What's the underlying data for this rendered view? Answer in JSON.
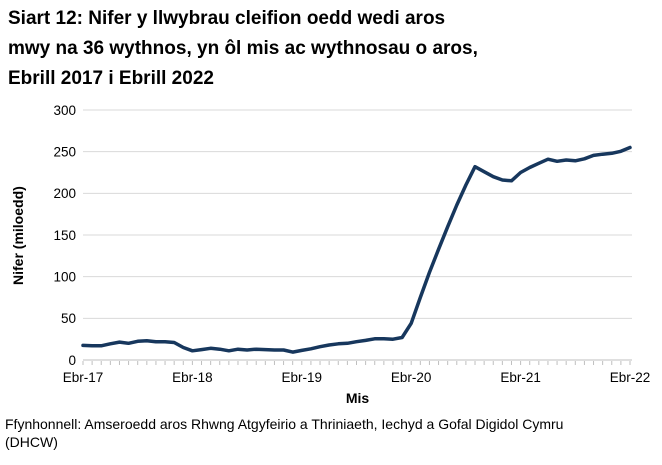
{
  "header": {
    "title": "Siart 12: Nifer y llwybrau cleifion oedd wedi aros mwy na 36 wythnos, yn ôl mis ac wythnosau o aros, Ebrill 2017 i Ebrill 2022",
    "title_lines": [
      "Siart 12: Nifer y llwybrau cleifion oedd wedi aros",
      "mwy na 36 wythnos, yn ôl mis ac wythnosau o aros,",
      "Ebrill 2017 i Ebrill 2022"
    ]
  },
  "footer": {
    "source": "Ffynhonnell: Amseroedd aros Rhwng Atgyfeirio a Thriniaeth, Iechyd a Gofal Digidol Cymru (DHCW)",
    "source_lines": [
      "Ffynhonnell: Amseroedd aros Rhwng Atgyfeirio a Thriniaeth, Iechyd a Gofal Digidol Cymru",
      "(DHCW)"
    ]
  },
  "chart_data": {
    "type": "line",
    "title": "Siart 12: Nifer y llwybrau cleifion oedd wedi aros mwy na 36 wythnos, yn ôl mis ac wythnosau o aros, Ebrill 2017 i Ebrill 2022",
    "xlabel": "Mis",
    "ylabel": "Nifer (miloedd)",
    "ylim": [
      0,
      300
    ],
    "y_ticks": [
      0,
      50,
      100,
      150,
      200,
      250,
      300
    ],
    "x_tick_labels": [
      "Ebr-17",
      "Ebr-18",
      "Ebr-19",
      "Ebr-20",
      "Ebr-21",
      "Ebr-22"
    ],
    "x_tick_month_index": [
      0,
      12,
      24,
      36,
      48,
      60
    ],
    "x_start": "Ebrill 2017",
    "x_end": "Ebrill 2022",
    "frequency": "monthly",
    "grid": "horizontal",
    "legend_position": "none",
    "series": [
      {
        "name": "Nifer y llwybrau cleifion oedd wedi aros mwy na 36 wythnos (miloedd)",
        "values": [
          17.5,
          17,
          17,
          19.5,
          21.5,
          20,
          22.5,
          23,
          22,
          22,
          21,
          15,
          11,
          12.5,
          14,
          13,
          11,
          13,
          12,
          13,
          12.5,
          12,
          12,
          9.5,
          11.5,
          13.5,
          16,
          18,
          19.5,
          20,
          22,
          23.5,
          25.5,
          25.5,
          25,
          27,
          44,
          75,
          105,
          133,
          160,
          186,
          210,
          232,
          226,
          220,
          216,
          215,
          225,
          231,
          236,
          241,
          238.5,
          240,
          239,
          241.5,
          245.5,
          247,
          248,
          250.5,
          255
        ]
      }
    ],
    "colors": {
      "line": "#17375d",
      "grid": "#d9d9d9",
      "axis": "#bfbfbf",
      "text": "#000000"
    }
  }
}
